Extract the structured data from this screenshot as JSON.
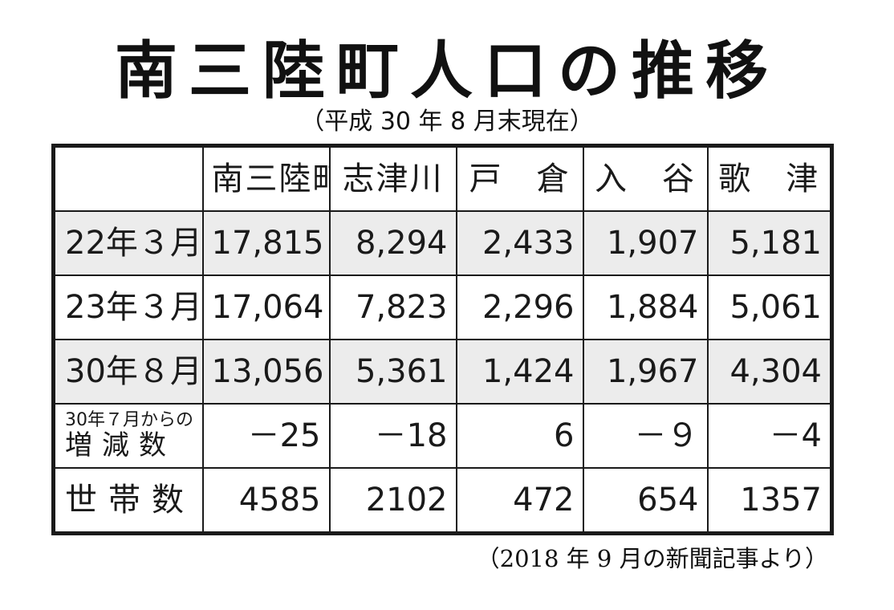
{
  "title": "南三陸町人口の推移",
  "subtitle": "（平成 30 年 8 月末現在）",
  "table": {
    "corner": "",
    "columns": [
      "南三陸町",
      "志津川",
      "戸　倉",
      "入　谷",
      "歌　津"
    ],
    "rows": [
      {
        "label": "22年３月",
        "values": [
          "17,815",
          "8,294",
          "2,433",
          "1,907",
          "5,181"
        ]
      },
      {
        "label": "23年３月",
        "values": [
          "17,064",
          "7,823",
          "2,296",
          "1,884",
          "5,061"
        ]
      },
      {
        "label": "30年８月",
        "values": [
          "13,056",
          "5,361",
          "1,424",
          "1,967",
          "4,304"
        ]
      },
      {
        "label_small": "30年７月からの",
        "label": "増減数",
        "values": [
          "－25",
          "－18",
          "6",
          "－９",
          "－4"
        ]
      },
      {
        "label": "世帯数",
        "values": [
          "4585",
          "2102",
          "472",
          "654",
          "1357"
        ]
      }
    ]
  },
  "source": "（2018 年 9 月の新聞記事より）"
}
